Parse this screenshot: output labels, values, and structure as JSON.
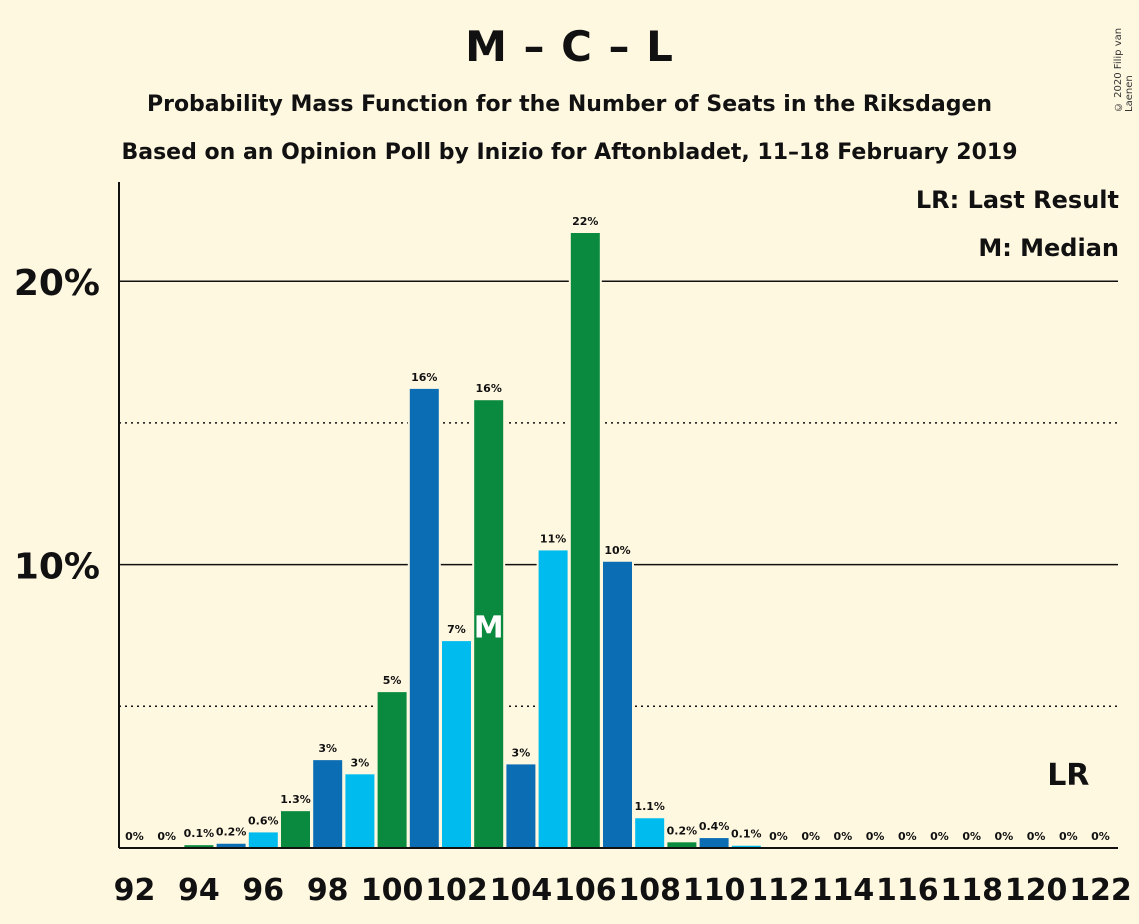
{
  "chart_data": {
    "type": "bar",
    "title": "M – C – L",
    "subtitle": "Probability Mass Function for the Number of Seats in the Riksdagen",
    "subtitle2": "Based on an Opinion Poll by Inizio for Aftonbladet, 11–18 February 2019",
    "copyright": "© 2020 Filip van Laenen",
    "legend": {
      "last_result": "LR: Last Result",
      "median": "M: Median",
      "placement": "top-right"
    },
    "ylim": [
      0,
      23.5
    ],
    "y_ticks": [
      {
        "value": 10,
        "label": "10%",
        "style": "solid"
      },
      {
        "value": 20,
        "label": "20%",
        "style": "solid"
      }
    ],
    "y_minor_gridlines": [
      5,
      15
    ],
    "x_tick_labels": [
      "92",
      "94",
      "96",
      "98",
      "100",
      "102",
      "104",
      "106",
      "108",
      "110",
      "112",
      "114",
      "116",
      "118",
      "120",
      "122"
    ],
    "bars": [
      {
        "seats": 92,
        "value": 0,
        "label": "0%",
        "color": "#0b6db3"
      },
      {
        "seats": 93,
        "value": 0,
        "label": "0%",
        "color": "#0a8a3f"
      },
      {
        "seats": 94,
        "value": 0.1,
        "label": "0.1%",
        "color": "#0a8a3f"
      },
      {
        "seats": 95,
        "value": 0.15,
        "label": "0.2%",
        "color": "#0b6db3"
      },
      {
        "seats": 96,
        "value": 0.55,
        "label": "0.6%",
        "color": "#00bbee"
      },
      {
        "seats": 97,
        "value": 1.3,
        "label": "1.3%",
        "color": "#0a8a3f"
      },
      {
        "seats": 98,
        "value": 3.1,
        "label": "3%",
        "color": "#0b6db3"
      },
      {
        "seats": 99,
        "value": 2.6,
        "label": "3%",
        "color": "#00bbee"
      },
      {
        "seats": 100,
        "value": 5.5,
        "label": "5%",
        "color": "#0a8a3f"
      },
      {
        "seats": 101,
        "value": 16.2,
        "label": "16%",
        "color": "#0b6db3"
      },
      {
        "seats": 102,
        "value": 7.3,
        "label": "7%",
        "color": "#00bbee"
      },
      {
        "seats": 103,
        "value": 15.8,
        "label": "16%",
        "color": "#0a8a3f"
      },
      {
        "seats": 104,
        "value": 2.95,
        "label": "3%",
        "color": "#0b6db3"
      },
      {
        "seats": 105,
        "value": 10.5,
        "label": "11%",
        "color": "#00bbee"
      },
      {
        "seats": 106,
        "value": 21.7,
        "label": "22%",
        "color": "#0a8a3f"
      },
      {
        "seats": 107,
        "value": 10.1,
        "label": "10%",
        "color": "#0b6db3"
      },
      {
        "seats": 108,
        "value": 1.05,
        "label": "1.1%",
        "color": "#00bbee"
      },
      {
        "seats": 109,
        "value": 0.2,
        "label": "0.2%",
        "color": "#0a8a3f"
      },
      {
        "seats": 110,
        "value": 0.35,
        "label": "0.4%",
        "color": "#0b6db3"
      },
      {
        "seats": 111,
        "value": 0.08,
        "label": "0.1%",
        "color": "#00bbee"
      },
      {
        "seats": 112,
        "value": 0,
        "label": "0%",
        "color": "#0a8a3f"
      },
      {
        "seats": 113,
        "value": 0,
        "label": "0%",
        "color": "#0b6db3"
      },
      {
        "seats": 114,
        "value": 0,
        "label": "0%",
        "color": "#00bbee"
      },
      {
        "seats": 115,
        "value": 0,
        "label": "0%",
        "color": "#0a8a3f"
      },
      {
        "seats": 116,
        "value": 0,
        "label": "0%",
        "color": "#0b6db3"
      },
      {
        "seats": 117,
        "value": 0,
        "label": "0%",
        "color": "#00bbee"
      },
      {
        "seats": 118,
        "value": 0,
        "label": "0%",
        "color": "#0a8a3f"
      },
      {
        "seats": 119,
        "value": 0,
        "label": "0%",
        "color": "#0b6db3"
      },
      {
        "seats": 120,
        "value": 0,
        "label": "0%",
        "color": "#00bbee"
      },
      {
        "seats": 121,
        "value": 0,
        "label": "0%",
        "color": "#0a8a3f"
      },
      {
        "seats": 122,
        "value": 0,
        "label": "0%",
        "color": "#0b6db3"
      }
    ],
    "median": {
      "seats": 103,
      "marker": "M"
    },
    "last_result": {
      "seats": 121,
      "marker": "LR"
    }
  }
}
